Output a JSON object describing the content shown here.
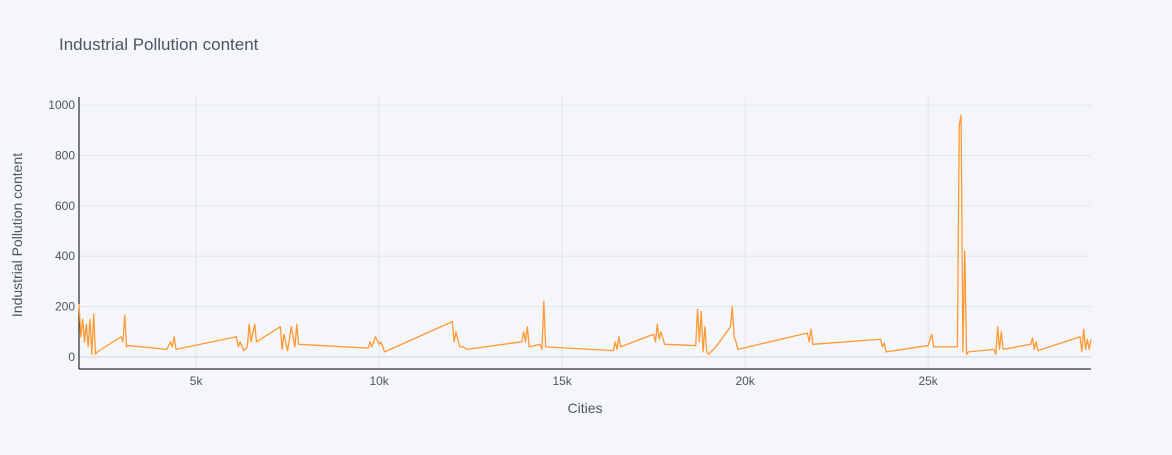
{
  "chart_data": {
    "type": "line",
    "title": "Industrial Pollution content",
    "x_label": "Cities",
    "y_label": "Industrial Pollution content",
    "xlim": [
      1800,
      29450
    ],
    "ylim": [
      -48,
      1032
    ],
    "xticks": [
      {
        "value": 5000,
        "label": "5k"
      },
      {
        "value": 10000,
        "label": "10k"
      },
      {
        "value": 15000,
        "label": "15k"
      },
      {
        "value": 20000,
        "label": "20k"
      },
      {
        "value": 25000,
        "label": "25k"
      }
    ],
    "yticks": [
      0,
      200,
      400,
      600,
      800,
      1000
    ],
    "grid": true,
    "x": [
      1800,
      1850,
      1900,
      1950,
      2000,
      2050,
      2100,
      2150,
      2200,
      2250,
      2300,
      2950,
      3000,
      3050,
      3100,
      3150,
      4200,
      4300,
      4350,
      4400,
      4450,
      6100,
      6150,
      6200,
      6300,
      6400,
      6450,
      6500,
      6600,
      6650,
      7300,
      7350,
      7400,
      7500,
      7600,
      7700,
      7750,
      7800,
      9700,
      9750,
      9800,
      9900,
      10000,
      10050,
      10150,
      12000,
      12050,
      12100,
      12200,
      12300,
      12400,
      13900,
      13950,
      14000,
      14050,
      14100,
      14400,
      14450,
      14500,
      14550,
      16400,
      16450,
      16500,
      16550,
      16600,
      17500,
      17550,
      17600,
      17650,
      17700,
      17800,
      18650,
      18700,
      18750,
      18800,
      18850,
      18900,
      18950,
      19000,
      19200,
      19600,
      19650,
      19700,
      19750,
      19800,
      21700,
      21750,
      21800,
      21850,
      23700,
      23750,
      23800,
      23850,
      25000,
      25100,
      25150,
      25800,
      25850,
      25900,
      25950,
      26000,
      26050,
      26100,
      26800,
      26850,
      26900,
      26950,
      27000,
      27050,
      27800,
      27850,
      27900,
      27950,
      28000,
      29150,
      29200,
      29250,
      29300,
      29350,
      29400,
      29450
    ],
    "series": [
      {
        "name": "Industrial Pollution content",
        "color": "#ff9933",
        "values": [
          210,
          80,
          150,
          60,
          130,
          40,
          150,
          10,
          170,
          10,
          20,
          80,
          60,
          165,
          40,
          45,
          30,
          60,
          40,
          80,
          30,
          80,
          40,
          60,
          25,
          40,
          130,
          60,
          130,
          60,
          120,
          30,
          90,
          25,
          120,
          40,
          130,
          50,
          35,
          60,
          40,
          80,
          50,
          60,
          20,
          140,
          60,
          100,
          40,
          40,
          30,
          60,
          100,
          60,
          120,
          40,
          50,
          30,
          220,
          40,
          25,
          60,
          30,
          80,
          40,
          90,
          60,
          130,
          70,
          100,
          50,
          45,
          190,
          60,
          180,
          20,
          120,
          20,
          10,
          40,
          120,
          200,
          80,
          60,
          30,
          95,
          60,
          110,
          50,
          70,
          40,
          55,
          20,
          45,
          90,
          40,
          40,
          920,
          960,
          20,
          420,
          10,
          20,
          30,
          10,
          120,
          30,
          100,
          30,
          50,
          75,
          30,
          60,
          25,
          80,
          20,
          110,
          30,
          70,
          30,
          70
        ]
      }
    ]
  }
}
